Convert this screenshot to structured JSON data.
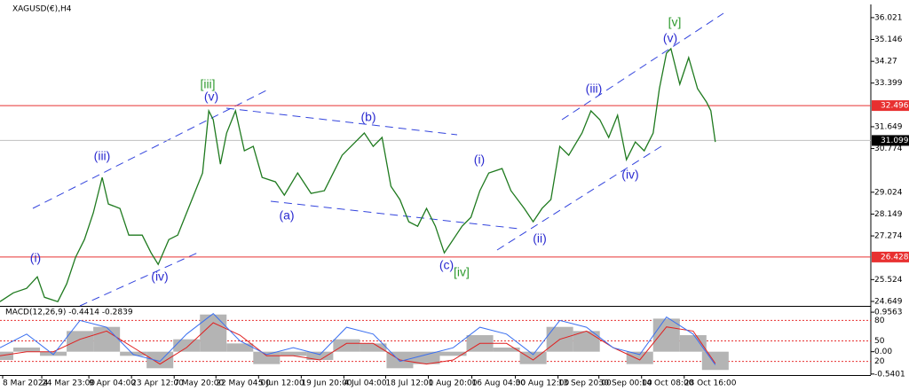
{
  "chart_data": [
    {
      "type": "price",
      "title": "XAGUSD(€),H4",
      "color": "#1f7a1f",
      "x": [
        0,
        15,
        30,
        42,
        50,
        65,
        75,
        85,
        95,
        105,
        115,
        122,
        135,
        145,
        160,
        170,
        178,
        190,
        200,
        210,
        220,
        228,
        235,
        240,
        248,
        255,
        265,
        275,
        285,
        295,
        310,
        320,
        335,
        350,
        365,
        375,
        385,
        400,
        410,
        420,
        430,
        440,
        450,
        460,
        470,
        480,
        490,
        500,
        510,
        520,
        530,
        540,
        550,
        565,
        575,
        590,
        600,
        610,
        620,
        630,
        640,
        655,
        665,
        675,
        685,
        695,
        705,
        715,
        725,
        735,
        742,
        750,
        755,
        765,
        775,
        785,
        795,
        800,
        805
      ],
      "values": [
        24.639,
        24.994,
        25.172,
        25.635,
        24.816,
        24.639,
        25.35,
        26.417,
        27.128,
        28.196,
        29.618,
        28.551,
        28.373,
        27.306,
        27.306,
        26.595,
        26.133,
        27.128,
        27.306,
        28.196,
        29.085,
        29.796,
        32.286,
        31.93,
        30.152,
        31.397,
        32.286,
        30.685,
        30.863,
        29.618,
        29.441,
        28.907,
        29.796,
        28.978,
        29.085,
        29.796,
        30.508,
        31.041,
        31.397,
        30.863,
        31.219,
        29.263,
        28.729,
        27.84,
        27.662,
        28.373,
        27.662,
        26.595,
        27.128,
        27.662,
        28.019,
        29.085,
        29.796,
        29.974,
        29.085,
        28.373,
        27.84,
        28.373,
        28.729,
        30.863,
        30.508,
        31.397,
        32.286,
        31.93,
        31.219,
        32.108,
        30.33,
        31.041,
        30.685,
        31.397,
        33.175,
        34.598,
        34.776,
        33.353,
        34.42,
        33.175,
        32.642,
        32.286,
        31.041
      ],
      "xlim": [
        0,
        980
      ],
      "xticks": [
        {
          "value": 3,
          "label": "8 Mar 2024"
        },
        {
          "value": 47,
          "label": "24 Mar 23:00"
        },
        {
          "value": 100,
          "label": "9 Apr 04:00"
        },
        {
          "value": 148,
          "label": "23 Apr 12:00"
        },
        {
          "value": 196,
          "label": "7 May 20:00"
        },
        {
          "value": 243,
          "label": "22 May 04:00"
        },
        {
          "value": 291,
          "label": "5 Jun 12:00"
        },
        {
          "value": 339,
          "label": "19 Jun 20:00"
        },
        {
          "value": 387,
          "label": "4 Jul 04:00"
        },
        {
          "value": 434,
          "label": "18 Jul 12:00"
        },
        {
          "value": 482,
          "label": "1 Aug 20:00"
        },
        {
          "value": 531,
          "label": "16 Aug 04:00"
        },
        {
          "value": 580,
          "label": "30 Aug 12:00"
        },
        {
          "value": 628,
          "label": "13 Sep 20:00"
        },
        {
          "value": 674,
          "label": "30 Sep 00:00"
        },
        {
          "value": 722,
          "label": "14 Oct 08:00"
        },
        {
          "value": 770,
          "label": "28 Oct 16:00"
        }
      ],
      "ylim": [
        24.47,
        36.55
      ],
      "yticks": [
        36.021,
        35.146,
        34.27,
        33.399,
        31.649,
        30.774,
        29.024,
        28.149,
        27.274,
        25.524,
        24.649
      ],
      "levels": [
        32.496,
        26.428
      ],
      "level_color": "#e83030",
      "last_price": 31.099,
      "last_color": "#000000",
      "annotations": [
        {
          "text": "(i)",
          "color": "#2a2ad0"
        },
        {
          "text": "(iii)",
          "color": "#2a2ad0"
        },
        {
          "text": "(iv)",
          "color": "#2a2ad0"
        },
        {
          "text": "[iii]",
          "color": "#2e9a2e"
        },
        {
          "text": "(v)",
          "color": "#2a2ad0"
        },
        {
          "text": "(a)",
          "color": "#2a2ad0"
        },
        {
          "text": "(b)",
          "color": "#2a2ad0"
        },
        {
          "text": "(c)",
          "color": "#2a2ad0"
        },
        {
          "text": "[iv]",
          "color": "#2e9a2e"
        },
        {
          "text": "(i)",
          "color": "#2a2ad0"
        },
        {
          "text": "(ii)",
          "color": "#2a2ad0"
        },
        {
          "text": "(iii)",
          "color": "#2a2ad0"
        },
        {
          "text": "(iv)",
          "color": "#2a2ad0"
        },
        {
          "text": "[v]",
          "color": "#2e9a2e"
        },
        {
          "text": "(v)",
          "color": "#2a2ad0"
        }
      ]
    },
    {
      "type": "macd",
      "title": "MACD(12,26,9) -0.4414 -0.2839",
      "x": [
        0,
        30,
        60,
        90,
        120,
        150,
        180,
        210,
        240,
        270,
        300,
        330,
        360,
        390,
        420,
        450,
        480,
        510,
        540,
        570,
        600,
        630,
        660,
        690,
        720,
        750,
        780,
        805
      ],
      "xlim": [
        0,
        980
      ],
      "series": [
        {
          "style": "bar",
          "color": "#b4b4b4",
          "values": [
            -0.2,
            0.1,
            -0.1,
            0.5,
            0.6,
            -0.1,
            -0.4,
            0.3,
            0.9,
            0.2,
            -0.3,
            -0.1,
            -0.2,
            0.3,
            0.2,
            -0.4,
            -0.3,
            -0.1,
            0.4,
            0.1,
            -0.3,
            0.6,
            0.5,
            0.0,
            -0.3,
            0.8,
            0.4,
            -0.4414
          ]
        },
        {
          "style": "line",
          "color": "#e02020",
          "values": [
            -0.1,
            0.0,
            0.0,
            0.3,
            0.5,
            0.1,
            -0.3,
            0.1,
            0.7,
            0.4,
            -0.1,
            -0.1,
            -0.2,
            0.2,
            0.2,
            -0.2,
            -0.3,
            -0.2,
            0.2,
            0.2,
            -0.2,
            0.3,
            0.5,
            0.1,
            -0.2,
            0.6,
            0.5,
            -0.2839
          ]
        },
        {
          "style": "line",
          "color": "#3a6ff0",
          "axis": "y2",
          "values": [
            40,
            60,
            30,
            80,
            70,
            30,
            20,
            60,
            90,
            50,
            30,
            40,
            30,
            70,
            60,
            20,
            30,
            40,
            70,
            60,
            30,
            80,
            70,
            40,
            30,
            85,
            60,
            15
          ]
        }
      ],
      "ylim": [
        -0.565,
        1.087
      ],
      "yticks": [
        0.9563,
        {
          "value": 0,
          "label": "0.00"
        },
        -0.5401
      ],
      "y2lim": [
        0,
        100
      ],
      "y2ticks": [
        80,
        50,
        20
      ],
      "y2_color": "#e83030"
    }
  ]
}
